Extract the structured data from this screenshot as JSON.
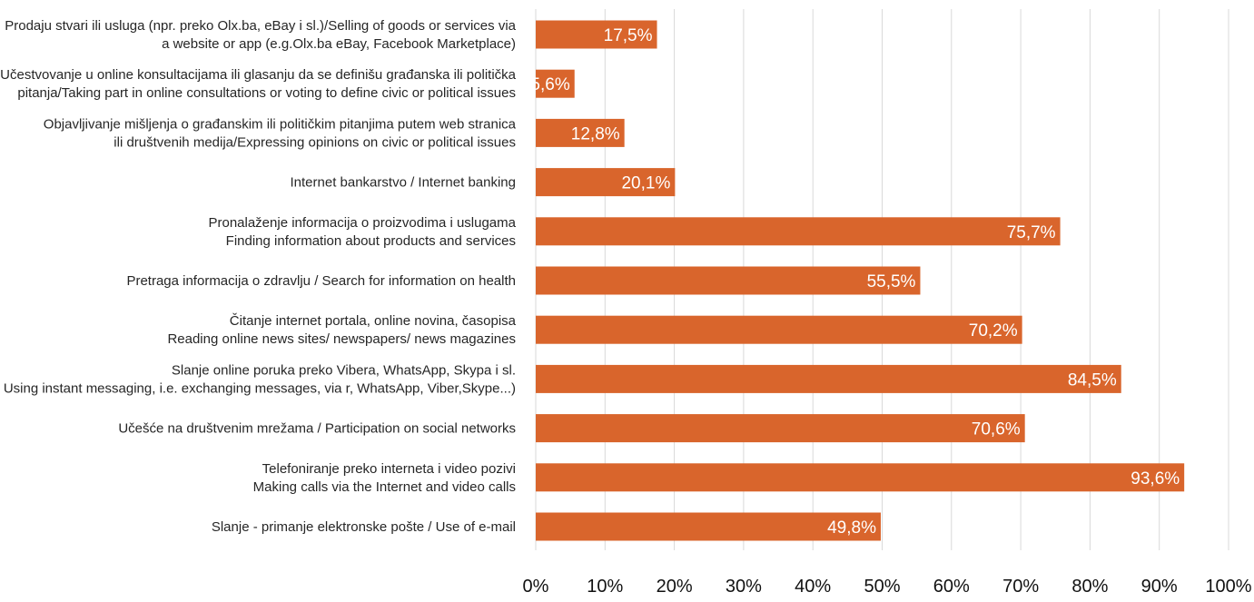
{
  "chart_data": {
    "type": "bar",
    "orientation": "horizontal",
    "categories": [
      [
        "Prodaju stvari ili usluga (npr. preko Olx.ba, eBay i sl.)/Selling of goods or services via",
        "a website or app (e.g.Olx.ba eBay, Facebook Marketplace)"
      ],
      [
        "Učestvovanje u online konsultacijama ili glasanju da se definišu građanska ili politička",
        "pitanja/Taking part in online consultations or voting to define civic or political issues"
      ],
      [
        "Objavljivanje mišljenja o građanskim ili političkim pitanjima putem web stranica",
        "ili društvenih medija/Expressing opinions on civic or political issues"
      ],
      [
        "Internet bankarstvo / Internet banking"
      ],
      [
        "Pronalaženje informacija o proizvodima i uslugama",
        "Finding information about products and services"
      ],
      [
        "Pretraga informacija o zdravlju / Search for information on health"
      ],
      [
        "Čitanje internet portala, online novina, časopisa",
        "Reading online news sites/ newspapers/ news magazines"
      ],
      [
        "Slanje online poruka preko Vibera, WhatsApp, Skypa i sl.",
        "Using instant messaging, i.e. exchanging messages, via r, WhatsApp, Viber,Skype...)"
      ],
      [
        "Učešće na društvenim mrežama / Participation on social networks"
      ],
      [
        "Telefoniranje preko interneta i video pozivi",
        "Making calls via the Internet and video calls"
      ],
      [
        "Slanje - primanje elektronske pošte / Use of e-mail"
      ]
    ],
    "values": [
      17.5,
      5.6,
      12.8,
      20.1,
      75.7,
      55.5,
      70.2,
      84.5,
      70.6,
      93.6,
      49.8
    ],
    "data_labels": [
      "17,5%",
      "5,6%",
      "12,8%",
      "20,1%",
      "75,7%",
      "55,5%",
      "70,2%",
      "84,5%",
      "70,6%",
      "93,6%",
      "49,8%"
    ],
    "xlim": [
      0,
      100
    ],
    "x_ticks": [
      0,
      10,
      20,
      30,
      40,
      50,
      60,
      70,
      80,
      90,
      100
    ],
    "x_tick_labels": [
      "0%",
      "10%",
      "20%",
      "30%",
      "40%",
      "50%",
      "60%",
      "70%",
      "80%",
      "90%",
      "100%"
    ],
    "title": "",
    "xlabel": "",
    "ylabel": "",
    "grid": true,
    "legend": "none",
    "bar_color": "#d9652c",
    "grid_color": "#d9d9d9"
  }
}
